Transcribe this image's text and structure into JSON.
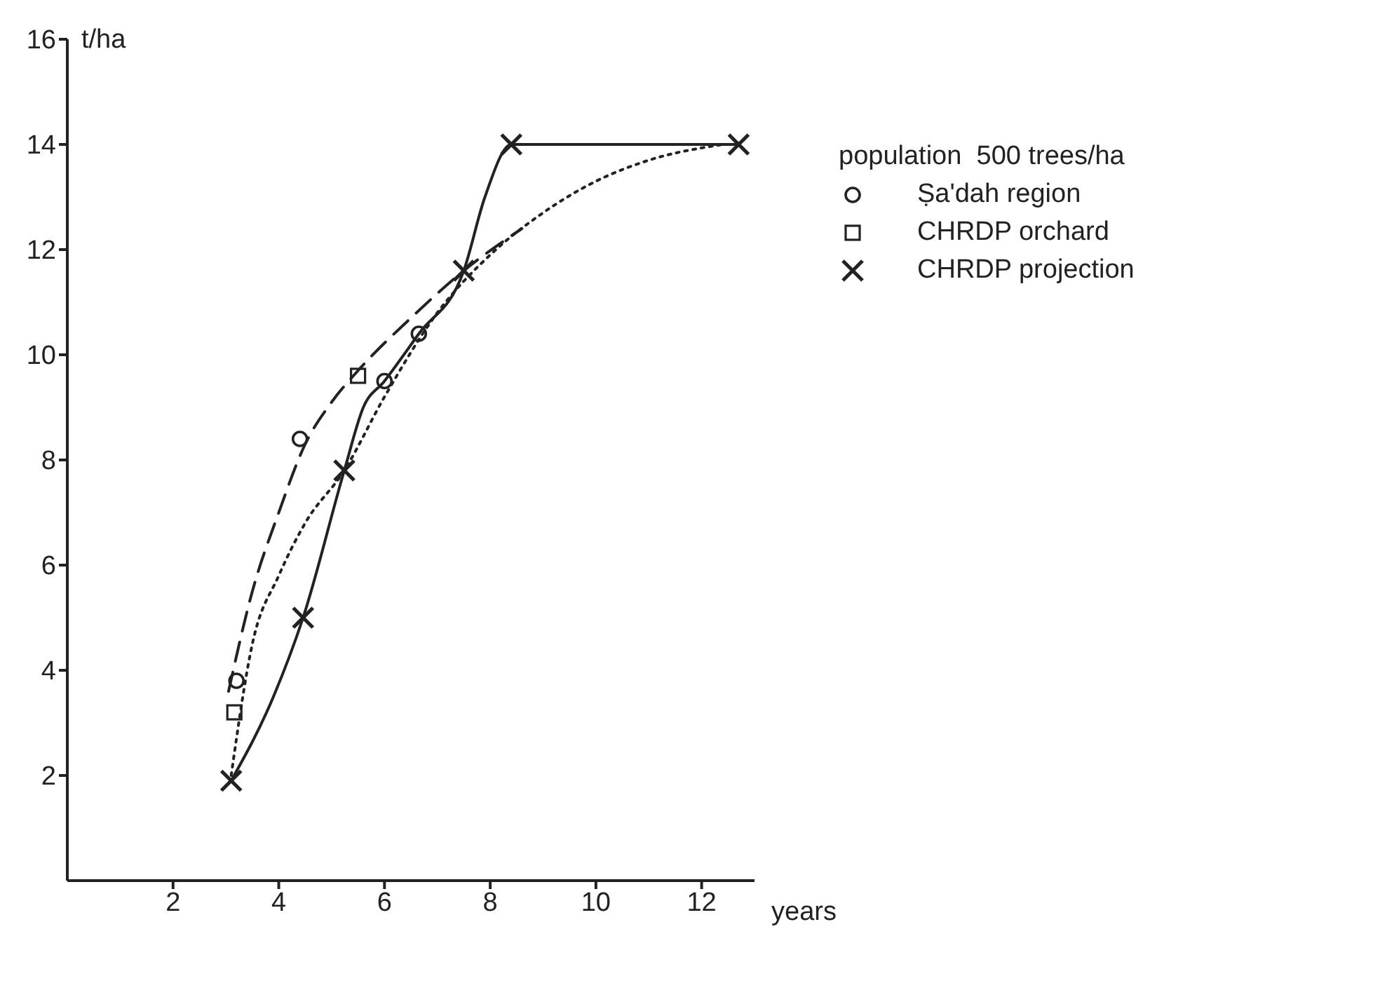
{
  "chart_data": {
    "type": "scatter",
    "xlabel": "years",
    "ylabel": "t/ha",
    "legend_title": "population  500 trees/ha",
    "xlim": [
      0,
      13
    ],
    "xticks": [
      2,
      4,
      6,
      8,
      10,
      12
    ],
    "ylim": [
      0,
      16
    ],
    "yticks": [
      2,
      4,
      6,
      8,
      10,
      12,
      14,
      16
    ],
    "grid": false,
    "legend": "right",
    "series": [
      {
        "type": "line",
        "color": "#222222",
        "line_style": "solid",
        "marker": "none",
        "x": [
          3.1,
          3.9,
          4.46,
          5.24,
          5.6,
          6.0,
          6.65,
          7.5,
          7.9,
          8.4,
          12.7
        ],
        "values": [
          1.9,
          3.5,
          5.0,
          7.8,
          9.0,
          9.5,
          10.4,
          11.6,
          13,
          14,
          14
        ]
      },
      {
        "type": "line",
        "color": "#222222",
        "line_style": "dashed",
        "marker": "none",
        "x": [
          3.05,
          3.5,
          4.0,
          4.5,
          5.0,
          5.5,
          6.5,
          7.5,
          8.6
        ],
        "values": [
          3.6,
          5.5,
          7.0,
          8.3,
          9.1,
          9.7,
          10.7,
          11.6,
          12.4
        ]
      },
      {
        "type": "line",
        "color": "#222222",
        "line_style": "dotted",
        "marker": "none",
        "x": [
          3.1,
          3.5,
          4.0,
          4.5,
          5.24,
          6,
          7,
          8,
          9,
          10,
          11,
          12.4
        ],
        "values": [
          2.0,
          4.5,
          5.8,
          6.8,
          7.8,
          9.2,
          10.8,
          11.9,
          12.7,
          13.3,
          13.7,
          14.0
        ]
      },
      {
        "name": "Ṣa'dah region",
        "color": "#222222",
        "marker": "circle",
        "x": [
          3.2,
          4.4,
          6.0,
          6.65
        ],
        "values": [
          3.8,
          8.4,
          9.5,
          10.4
        ]
      },
      {
        "name": "CHRDP orchard",
        "color": "#222222",
        "marker": "square",
        "x": [
          3.16,
          5.5
        ],
        "values": [
          3.2,
          9.6
        ]
      },
      {
        "name": "CHRDP projection",
        "color": "#222222",
        "marker": "cross",
        "x": [
          3.1,
          4.46,
          5.24,
          7.5,
          8.4,
          12.7
        ],
        "values": [
          1.9,
          5.0,
          7.8,
          11.6,
          14,
          14
        ]
      }
    ]
  }
}
